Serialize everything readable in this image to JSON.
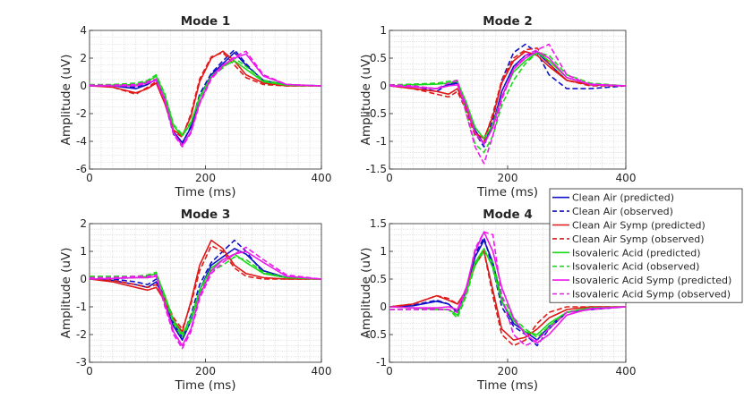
{
  "legend": {
    "placement": "right-middle",
    "entries": [
      {
        "label": "Clean Air (predicted)",
        "color": "#1010c8",
        "dash": "solid"
      },
      {
        "label": "Clean Air (observed)",
        "color": "#1010c8",
        "dash": "dashed"
      },
      {
        "label": "Clean Air Symp (predicted)",
        "color": "#e01818",
        "dash": "solid"
      },
      {
        "label": "Clean Air Symp (observed)",
        "color": "#e01818",
        "dash": "dashed"
      },
      {
        "label": "Isovaleric Acid (predicted)",
        "color": "#1ad81a",
        "dash": "solid"
      },
      {
        "label": "Isovaleric Acid (observed)",
        "color": "#1ad81a",
        "dash": "dashed"
      },
      {
        "label": "Isovaleric Acid Symp (predicted)",
        "color": "#ee18ee",
        "dash": "solid"
      },
      {
        "label": "Isovaleric Acid Symp (observed)",
        "color": "#ee18ee",
        "dash": "dashed"
      }
    ]
  },
  "chart_data": [
    {
      "type": "line",
      "title": "Mode 1",
      "xlabel": "Time (ms)",
      "ylabel": "Amplitude (uV)",
      "xlim": [
        0,
        400
      ],
      "ylim": [
        -6,
        4
      ],
      "xticks": [
        0,
        200,
        400
      ],
      "xtick_labels": [
        "0",
        "200",
        "400"
      ],
      "yticks": [
        -6,
        -4,
        -2,
        0,
        2,
        4
      ],
      "ytick_labels": [
        "-6",
        "-4",
        "-2",
        "0",
        "2",
        "4"
      ],
      "grid": true,
      "x": [
        0,
        40,
        80,
        100,
        115,
        130,
        145,
        160,
        175,
        190,
        210,
        230,
        250,
        270,
        300,
        340,
        400
      ],
      "series": [
        {
          "name": "Clean Air (predicted)",
          "values": [
            0,
            0,
            -0.2,
            0.1,
            0.5,
            -1.0,
            -3.3,
            -4.1,
            -3.0,
            -0.8,
            0.8,
            1.6,
            2.4,
            1.5,
            0.4,
            0.05,
            0
          ]
        },
        {
          "name": "Clean Air (observed)",
          "values": [
            0.05,
            0,
            -0.1,
            0.2,
            0.4,
            -1.2,
            -3.5,
            -4.2,
            -2.9,
            -0.6,
            0.9,
            1.8,
            2.6,
            1.6,
            0.3,
            0.1,
            0
          ]
        },
        {
          "name": "Clean Air Symp (predicted)",
          "values": [
            0,
            -0.1,
            -0.5,
            -0.2,
            0.2,
            -1.3,
            -3.2,
            -3.6,
            -2.2,
            0.3,
            2.0,
            2.5,
            1.8,
            0.8,
            0.2,
            0,
            0
          ]
        },
        {
          "name": "Clean Air Symp (observed)",
          "values": [
            0.05,
            -0.1,
            -0.6,
            -0.1,
            0.3,
            -1.2,
            -3.3,
            -3.7,
            -2.0,
            0.5,
            2.1,
            2.4,
            1.5,
            0.6,
            0.1,
            0,
            0
          ]
        },
        {
          "name": "Isovaleric Acid (predicted)",
          "values": [
            0,
            0.05,
            0.1,
            0.3,
            0.7,
            -0.7,
            -2.9,
            -3.6,
            -2.7,
            -0.8,
            0.7,
            1.4,
            1.8,
            1.2,
            0.3,
            0.05,
            0
          ]
        },
        {
          "name": "Isovaleric Acid (observed)",
          "values": [
            0.1,
            0.1,
            0.2,
            0.4,
            0.8,
            -0.6,
            -2.8,
            -3.5,
            -2.6,
            -0.9,
            0.6,
            1.3,
            2.0,
            1.4,
            0.4,
            0.1,
            0
          ]
        },
        {
          "name": "Isovaleric Acid Symp (predicted)",
          "values": [
            0,
            0,
            0,
            0.2,
            0.4,
            -1.1,
            -3.4,
            -4.3,
            -3.3,
            -1.2,
            0.6,
            1.5,
            2.0,
            2.3,
            0.7,
            0.1,
            0
          ]
        },
        {
          "name": "Isovaleric Acid Symp (observed)",
          "values": [
            0.05,
            0.05,
            0.1,
            0.3,
            0.5,
            -1.0,
            -3.5,
            -4.4,
            -3.4,
            -1.3,
            0.5,
            1.4,
            2.1,
            2.5,
            0.8,
            0.1,
            0
          ]
        }
      ]
    },
    {
      "type": "line",
      "title": "Mode 2",
      "xlabel": "Time (ms)",
      "ylabel": "Amplitude (uV)",
      "xlim": [
        0,
        400
      ],
      "ylim": [
        -1.5,
        1
      ],
      "xticks": [
        0,
        200,
        400
      ],
      "xtick_labels": [
        "0",
        "200",
        "400"
      ],
      "yticks": [
        -1.5,
        -1,
        -0.5,
        0,
        0.5,
        1
      ],
      "ytick_labels": [
        "-1.5",
        "-1",
        "-0.5",
        "0",
        "0.5",
        "1"
      ],
      "grid": true,
      "x": [
        0,
        40,
        80,
        100,
        115,
        130,
        145,
        160,
        175,
        190,
        210,
        230,
        250,
        270,
        300,
        340,
        400
      ],
      "series": [
        {
          "name": "Clean Air (predicted)",
          "values": [
            0,
            -0.02,
            -0.05,
            0.02,
            0.05,
            -0.3,
            -0.8,
            -1.05,
            -0.7,
            -0.1,
            0.35,
            0.55,
            0.6,
            0.4,
            0.1,
            0.02,
            0
          ]
        },
        {
          "name": "Clean Air (observed)",
          "values": [
            0.02,
            0,
            -0.1,
            0.03,
            0.06,
            -0.35,
            -0.85,
            -1.1,
            -0.6,
            0.1,
            0.6,
            0.75,
            0.6,
            0.2,
            -0.05,
            -0.05,
            0
          ]
        },
        {
          "name": "Clean Air Symp (predicted)",
          "values": [
            0,
            -0.05,
            -0.1,
            -0.15,
            -0.05,
            -0.4,
            -0.85,
            -0.95,
            -0.55,
            0.05,
            0.45,
            0.62,
            0.55,
            0.35,
            0.1,
            0.02,
            0
          ]
        },
        {
          "name": "Clean Air Symp (observed)",
          "values": [
            0,
            -0.05,
            -0.15,
            -0.2,
            -0.1,
            -0.45,
            -0.9,
            -1.0,
            -0.5,
            0.1,
            0.5,
            0.65,
            0.68,
            0.4,
            0.1,
            0,
            0
          ]
        },
        {
          "name": "Isovaleric Acid (predicted)",
          "values": [
            0,
            0.02,
            0.03,
            0.05,
            0.08,
            -0.3,
            -0.75,
            -0.95,
            -0.7,
            -0.2,
            0.25,
            0.45,
            0.6,
            0.45,
            0.15,
            0.03,
            0
          ]
        },
        {
          "name": "Isovaleric Acid (observed)",
          "values": [
            0.02,
            0.03,
            0.05,
            0.08,
            0.1,
            -0.5,
            -1.05,
            -1.2,
            -0.9,
            -0.35,
            0.1,
            0.4,
            0.6,
            0.55,
            0.2,
            0.05,
            0
          ]
        },
        {
          "name": "Isovaleric Acid Symp (predicted)",
          "values": [
            0,
            -0.02,
            -0.05,
            0.0,
            0.02,
            -0.35,
            -0.85,
            -1.05,
            -0.75,
            -0.2,
            0.3,
            0.5,
            0.62,
            0.5,
            0.15,
            0.03,
            0
          ]
        },
        {
          "name": "Isovaleric Acid Symp (observed)",
          "values": [
            0.02,
            0,
            -0.05,
            0.05,
            0.1,
            -0.5,
            -1.1,
            -1.4,
            -0.9,
            -0.25,
            0.3,
            0.55,
            0.65,
            0.75,
            0.2,
            0.02,
            0
          ]
        }
      ]
    },
    {
      "type": "line",
      "title": "Mode 3",
      "xlabel": "Time (ms)",
      "ylabel": "Amplitude (uV)",
      "xlim": [
        0,
        400
      ],
      "ylim": [
        -3,
        2
      ],
      "xticks": [
        0,
        200,
        400
      ],
      "xtick_labels": [
        "0",
        "200",
        "400"
      ],
      "yticks": [
        -3,
        -2,
        -1,
        0,
        1,
        2
      ],
      "ytick_labels": [
        "-3",
        "-2",
        "-1",
        "0",
        "1",
        "2"
      ],
      "grid": true,
      "x": [
        0,
        40,
        80,
        100,
        115,
        130,
        145,
        160,
        175,
        190,
        210,
        230,
        250,
        270,
        300,
        340,
        400
      ],
      "series": [
        {
          "name": "Clean Air (predicted)",
          "values": [
            0,
            -0.05,
            -0.2,
            -0.3,
            -0.1,
            -0.8,
            -1.7,
            -2.2,
            -1.5,
            -0.4,
            0.5,
            0.8,
            1.1,
            0.9,
            0.3,
            0.05,
            0
          ]
        },
        {
          "name": "Clean Air (observed)",
          "values": [
            0.05,
            0,
            -0.1,
            -0.2,
            0.0,
            -0.7,
            -1.6,
            -2.1,
            -1.3,
            -0.2,
            0.6,
            1.0,
            1.4,
            1.0,
            0.2,
            0.05,
            0
          ]
        },
        {
          "name": "Clean Air Symp (predicted)",
          "values": [
            0,
            -0.1,
            -0.3,
            -0.4,
            -0.3,
            -0.8,
            -1.5,
            -1.9,
            -0.8,
            0.5,
            1.4,
            1.1,
            0.5,
            0.2,
            0.05,
            0,
            0
          ]
        },
        {
          "name": "Clean Air Symp (observed)",
          "values": [
            0.05,
            -0.05,
            -0.2,
            -0.3,
            -0.2,
            -0.7,
            -1.4,
            -1.8,
            -0.9,
            0.3,
            1.2,
            1.0,
            0.4,
            0.1,
            0,
            0,
            0
          ]
        },
        {
          "name": "Isovaleric Acid (predicted)",
          "values": [
            0,
            0.02,
            0.05,
            0.1,
            0.2,
            -0.6,
            -1.5,
            -2.0,
            -1.4,
            -0.4,
            0.4,
            0.7,
            0.9,
            0.6,
            0.2,
            0.05,
            0
          ]
        },
        {
          "name": "Isovaleric Acid (observed)",
          "values": [
            0.1,
            0.1,
            0.1,
            0.15,
            0.25,
            -0.7,
            -1.6,
            -2.1,
            -1.5,
            -0.5,
            0.3,
            0.5,
            0.8,
            0.7,
            0.25,
            0.05,
            0
          ]
        },
        {
          "name": "Isovaleric Acid Symp (predicted)",
          "values": [
            0,
            0.02,
            0.05,
            0.05,
            0.1,
            -0.9,
            -1.9,
            -2.4,
            -1.8,
            -0.6,
            0.3,
            0.7,
            0.9,
            1.0,
            0.6,
            0.1,
            0
          ]
        },
        {
          "name": "Isovaleric Acid Symp (observed)",
          "values": [
            0.05,
            0.05,
            0.1,
            0.1,
            0.15,
            -1.0,
            -2.0,
            -2.5,
            -1.9,
            -0.7,
            0.2,
            0.6,
            0.9,
            1.15,
            0.7,
            0.15,
            0
          ]
        }
      ]
    },
    {
      "type": "line",
      "title": "Mode 4",
      "xlabel": "Time (ms)",
      "ylabel": "Amplitude (uV)",
      "xlim": [
        0,
        400
      ],
      "ylim": [
        -1,
        1.5
      ],
      "xticks": [
        0,
        200,
        400
      ],
      "xtick_labels": [
        "0",
        "200",
        "400"
      ],
      "yticks": [
        -1,
        -0.5,
        0,
        0.5,
        1,
        1.5
      ],
      "ytick_labels": [
        "-1",
        "-0.5",
        "0",
        "0.5",
        "1",
        "1.5"
      ],
      "grid": true,
      "x": [
        0,
        40,
        80,
        100,
        115,
        130,
        145,
        160,
        175,
        190,
        210,
        230,
        250,
        270,
        300,
        340,
        400
      ],
      "series": [
        {
          "name": "Clean Air (predicted)",
          "values": [
            0,
            0.02,
            0.1,
            0.05,
            -0.1,
            0.3,
            0.9,
            1.2,
            0.8,
            0.1,
            -0.3,
            -0.45,
            -0.6,
            -0.35,
            -0.1,
            -0.02,
            0
          ]
        },
        {
          "name": "Clean Air (observed)",
          "values": [
            0,
            0.03,
            0.12,
            0.05,
            -0.1,
            0.3,
            0.95,
            1.25,
            0.7,
            0.0,
            -0.35,
            -0.5,
            -0.7,
            -0.4,
            -0.1,
            -0.05,
            0
          ]
        },
        {
          "name": "Clean Air Symp (predicted)",
          "values": [
            0,
            0.05,
            0.2,
            0.12,
            0.05,
            0.3,
            0.8,
            1.0,
            0.3,
            -0.4,
            -0.6,
            -0.55,
            -0.4,
            -0.2,
            -0.05,
            0,
            0
          ]
        },
        {
          "name": "Clean Air Symp (observed)",
          "values": [
            0,
            0.05,
            0.2,
            0.15,
            0.05,
            0.3,
            0.75,
            1.0,
            0.2,
            -0.5,
            -0.7,
            -0.6,
            -0.3,
            -0.1,
            0,
            0,
            0
          ]
        },
        {
          "name": "Isovaleric Acid (predicted)",
          "values": [
            0,
            -0.02,
            -0.05,
            -0.05,
            -0.15,
            0.25,
            0.8,
            1.05,
            0.7,
            0.1,
            -0.25,
            -0.45,
            -0.5,
            -0.3,
            -0.1,
            -0.02,
            0
          ]
        },
        {
          "name": "Isovaleric Acid (observed)",
          "values": [
            -0.05,
            -0.05,
            -0.05,
            -0.05,
            -0.2,
            0.2,
            0.75,
            1.0,
            0.8,
            0.2,
            -0.2,
            -0.4,
            -0.55,
            -0.35,
            -0.1,
            -0.02,
            0
          ]
        },
        {
          "name": "Isovaleric Acid Symp (predicted)",
          "values": [
            0,
            -0.02,
            -0.02,
            0.0,
            -0.05,
            0.35,
            1.0,
            1.35,
            1.0,
            0.35,
            -0.2,
            -0.5,
            -0.65,
            -0.5,
            -0.15,
            -0.03,
            0
          ]
        },
        {
          "name": "Isovaleric Acid Symp (observed)",
          "values": [
            -0.05,
            -0.05,
            -0.05,
            -0.05,
            -0.1,
            0.3,
            1.05,
            1.35,
            1.3,
            0.2,
            -0.5,
            -0.7,
            -0.6,
            -0.4,
            -0.1,
            -0.05,
            0
          ]
        }
      ]
    }
  ]
}
